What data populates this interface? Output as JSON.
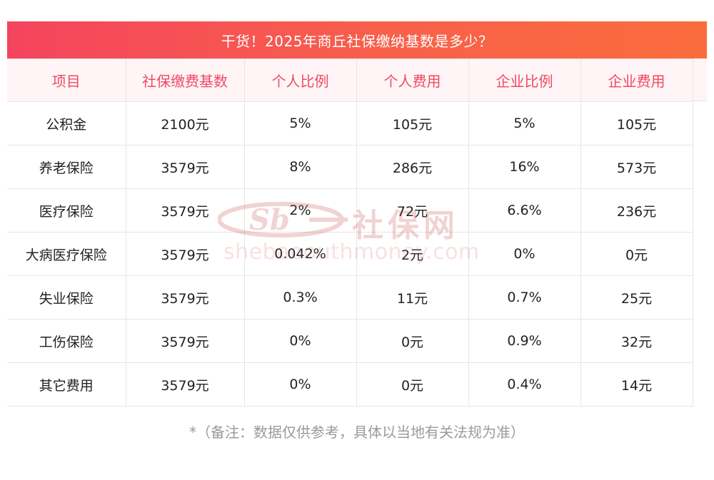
{
  "title": "干货！2025年商丘社保缴纳基数是多少？",
  "table": {
    "headers": [
      "项目",
      "社保缴费基数",
      "个人比例",
      "个人费用",
      "企业比例",
      "企业费用"
    ],
    "rows": [
      [
        "公积金",
        "2100元",
        "5%",
        "105元",
        "5%",
        "105元"
      ],
      [
        "养老保险",
        "3579元",
        "8%",
        "286元",
        "16%",
        "573元"
      ],
      [
        "医疗保险",
        "3579元",
        "2%",
        "72元",
        "6.6%",
        "236元"
      ],
      [
        "大病医疗保险",
        "3579元",
        "0.042%",
        "2元",
        "0%",
        "0元"
      ],
      [
        "失业保险",
        "3579元",
        "0.3%",
        "11元",
        "0.7%",
        "25元"
      ],
      [
        "工伤保险",
        "3579元",
        "0%",
        "0元",
        "0.9%",
        "32元"
      ],
      [
        "其它费用",
        "3579元",
        "0%",
        "0元",
        "0.4%",
        "14元"
      ]
    ]
  },
  "footnote": "*（备注：数据仅供参考，具体以当地有关法规为准）",
  "watermark": {
    "logo_text": "社保网",
    "url": "shebaoouthmoney.com"
  },
  "colors": {
    "title_gradient_start": "#f5445e",
    "title_gradient_end": "#fb6c3c",
    "header_text": "#f04864",
    "header_bg": "#fff5f6"
  }
}
